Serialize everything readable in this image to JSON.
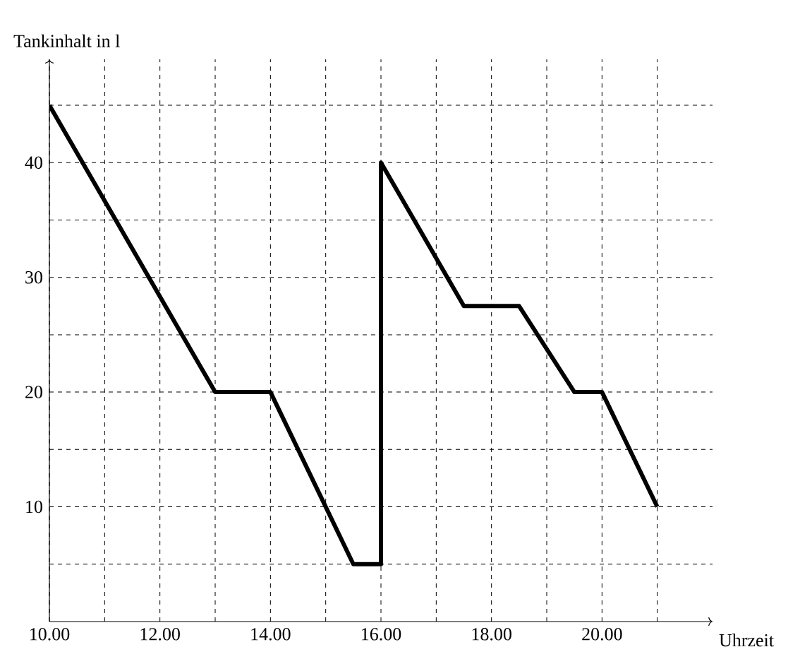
{
  "chart_data": {
    "type": "line",
    "xlabel": "Uhrzeit",
    "ylabel": "Tankinhalt in l",
    "xlim": [
      10,
      22
    ],
    "ylim": [
      0,
      49
    ],
    "xticks": [
      {
        "value": 10,
        "label": "10.00"
      },
      {
        "value": 11,
        "label": null
      },
      {
        "value": 12,
        "label": "12.00"
      },
      {
        "value": 13,
        "label": null
      },
      {
        "value": 14,
        "label": "14.00"
      },
      {
        "value": 15,
        "label": null
      },
      {
        "value": 16,
        "label": "16.00"
      },
      {
        "value": 17,
        "label": null
      },
      {
        "value": 18,
        "label": "18.00"
      },
      {
        "value": 19,
        "label": null
      },
      {
        "value": 20,
        "label": "20.00"
      },
      {
        "value": 21,
        "label": null
      }
    ],
    "yticks": [
      {
        "value": 5,
        "label": null
      },
      10,
      {
        "value": 15,
        "label": null
      },
      20,
      {
        "value": 25,
        "label": null
      },
      30,
      {
        "value": 35,
        "label": null
      },
      40,
      {
        "value": 45,
        "label": null
      }
    ],
    "grid": true,
    "series": [
      {
        "color": "#000000",
        "x": [
          10,
          13,
          14,
          15.5,
          16,
          16,
          17.5,
          18.5,
          19.5,
          20,
          21
        ],
        "values": [
          45,
          20,
          20,
          5,
          5,
          40,
          27.5,
          27.5,
          20,
          20,
          10
        ]
      }
    ]
  }
}
